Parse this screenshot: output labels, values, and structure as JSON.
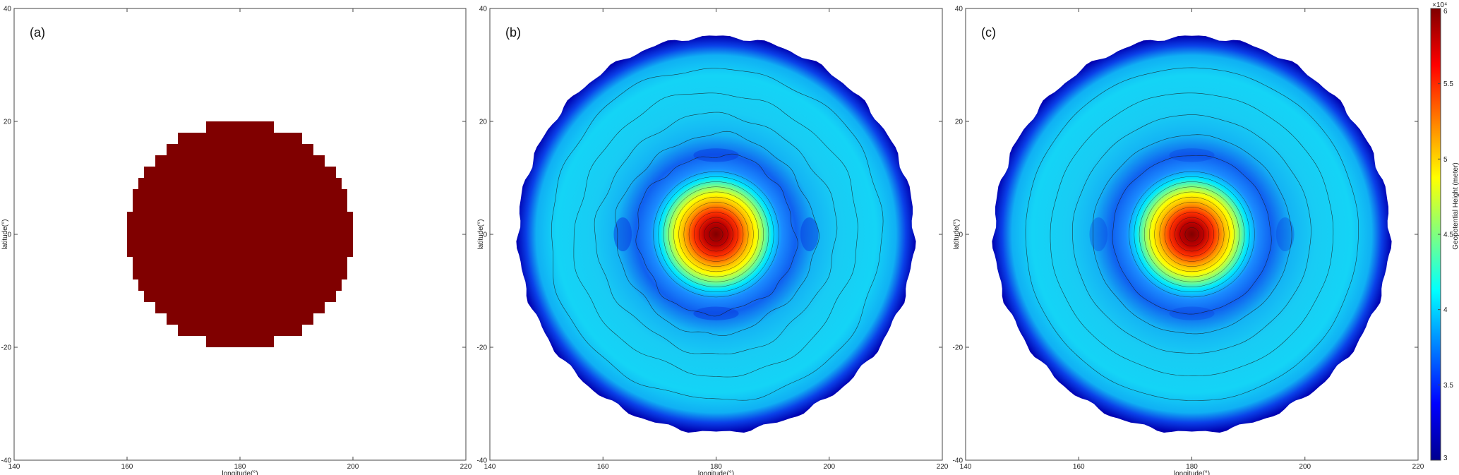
{
  "chart_data": {
    "type": "heatmap",
    "panels": [
      {
        "label": "(a)",
        "field": "initial",
        "shape": "disk",
        "radius_deg": 20,
        "center": [
          180,
          0
        ],
        "value": 60000
      },
      {
        "label": "(b)",
        "field": "perturbed",
        "shape": "disk",
        "radius_deg": 35,
        "center": [
          180,
          0
        ],
        "core_max": 60000,
        "ring_min": 32000,
        "background": 40000
      },
      {
        "label": "(c)",
        "field": "smooth",
        "shape": "disk",
        "radius_deg": 35,
        "center": [
          180,
          0
        ],
        "core_max": 60000,
        "ring_min": 32000,
        "background": 40000
      }
    ],
    "xlabel": "longitude(°)",
    "ylabel": "latitude(°)",
    "xlim": [
      140,
      220
    ],
    "ylim": [
      -40,
      40
    ],
    "xticks": [
      "140",
      "160",
      "180",
      "200",
      "220"
    ],
    "yticks": [
      "-40",
      "-20",
      "0",
      "20",
      "40"
    ],
    "colorbar": {
      "label": "Geopotential Height (meter)",
      "exponent": "×10⁴",
      "range": [
        3,
        6
      ],
      "ticks": [
        "3",
        "3.5",
        "4",
        "4.5",
        "5",
        "5.5",
        "6"
      ],
      "colormap": "jet"
    },
    "grid": false
  },
  "colors": {
    "dark_red": "#800000",
    "frame": "#444444",
    "contour": "#1a1a1a"
  }
}
